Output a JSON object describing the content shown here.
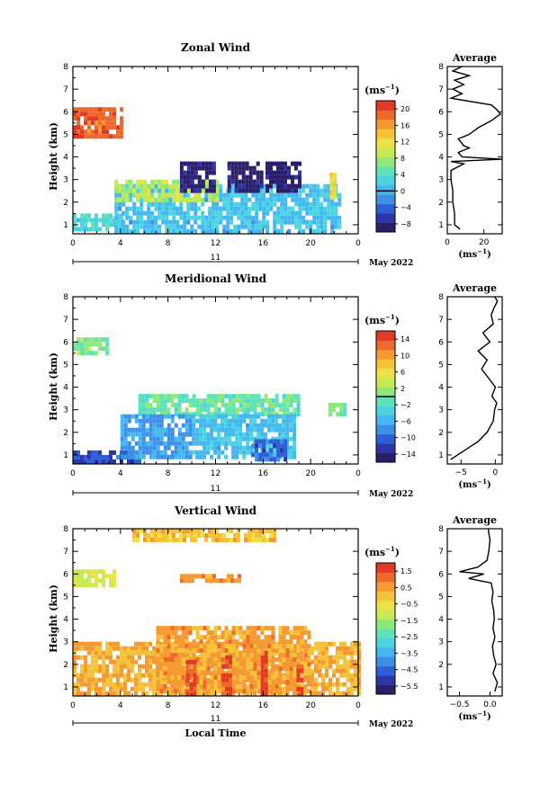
{
  "chart_data": [
    {
      "type": "heatmap",
      "title": "Zonal Wind",
      "ylabel": "Height (km)",
      "ylim": [
        0.6,
        8
      ],
      "xlim": [
        0,
        24
      ],
      "x_ticks": [
        "0",
        "4",
        "8",
        "12",
        "16",
        "20",
        "0"
      ],
      "y_ticks": [
        "1",
        "2",
        "3",
        "4",
        "5",
        "6",
        "7",
        "8"
      ],
      "date_day": "11",
      "date_label": "May 2022",
      "unit": "(ms",
      "unit_exp": "−1",
      "unit_close": ")",
      "colorbar": {
        "ticks": [
          "20",
          "16",
          "12",
          "8",
          "4",
          "0",
          "−4",
          "−8"
        ],
        "values": [
          20,
          16,
          12,
          8,
          4,
          0,
          -4,
          -8
        ],
        "range": [
          -10,
          22
        ],
        "zero_line": 0
      },
      "regions": [
        {
          "x": [
            0,
            4
          ],
          "y": [
            4.9,
            6.2
          ],
          "value": 19
        },
        {
          "x": [
            0,
            4
          ],
          "y": [
            0.8,
            1.5
          ],
          "value": 3
        },
        {
          "x": [
            3.5,
            22.5
          ],
          "y": [
            0.8,
            2.8
          ],
          "value": 1
        },
        {
          "x": [
            3.5,
            12
          ],
          "y": [
            2.2,
            3.0
          ],
          "value": 9
        },
        {
          "x": [
            9,
            12
          ],
          "y": [
            2.6,
            3.8
          ],
          "value": -9
        },
        {
          "x": [
            13,
            16
          ],
          "y": [
            2.6,
            3.8
          ],
          "value": -9
        },
        {
          "x": [
            16.2,
            19
          ],
          "y": [
            2.6,
            3.8
          ],
          "value": -9
        },
        {
          "x": [
            21.6,
            22.2
          ],
          "y": [
            2.2,
            3.3
          ],
          "value": 12
        }
      ],
      "profile": {
        "title": "Average",
        "x_ticks": [
          "0",
          "20"
        ],
        "xlim": [
          0,
          30
        ],
        "xlabel": "(ms",
        "xlabel_exp": "−1",
        "xlabel_close": ")",
        "heights": [
          0.8,
          1.0,
          1.5,
          2.0,
          2.5,
          3.0,
          3.4,
          3.7,
          3.8,
          3.9,
          4.0,
          4.2,
          4.4,
          4.5,
          4.8,
          5.0,
          5.3,
          5.6,
          5.9,
          6.1,
          6.3,
          6.6,
          6.8,
          7.0,
          7.2,
          7.4,
          7.6,
          7.8,
          8.0
        ],
        "values": [
          7,
          4,
          4,
          3,
          3,
          2,
          2,
          9,
          2,
          30,
          8,
          6,
          12,
          9,
          6,
          12,
          17,
          24,
          29,
          27,
          24,
          2,
          8,
          3,
          9,
          4,
          12,
          3,
          8
        ]
      }
    },
    {
      "type": "heatmap",
      "title": "Meridional Wind",
      "ylabel": "Height (km)",
      "ylim": [
        0.6,
        8
      ],
      "xlim": [
        0,
        24
      ],
      "x_ticks": [
        "0",
        "4",
        "8",
        "12",
        "16",
        "20",
        "0"
      ],
      "y_ticks": [
        "1",
        "2",
        "3",
        "4",
        "5",
        "6",
        "7",
        "8"
      ],
      "date_day": "11",
      "date_label": "May 2022",
      "unit": "(ms",
      "unit_exp": "−1",
      "unit_close": ")",
      "colorbar": {
        "ticks": [
          "14",
          "10",
          "6",
          "2",
          "−2",
          "−6",
          "−10",
          "−14"
        ],
        "values": [
          14,
          10,
          6,
          2,
          -2,
          -6,
          -10,
          -14
        ],
        "range": [
          -16,
          16
        ],
        "zero_line": 0
      },
      "regions": [
        {
          "x": [
            0,
            3
          ],
          "y": [
            5.6,
            6.2
          ],
          "value": 1
        },
        {
          "x": [
            0,
            5.5
          ],
          "y": [
            0.8,
            1.2
          ],
          "value": -11
        },
        {
          "x": [
            5.5,
            19
          ],
          "y": [
            2.8,
            3.7
          ],
          "value": -1
        },
        {
          "x": [
            4,
            10
          ],
          "y": [
            1.0,
            2.8
          ],
          "value": -7
        },
        {
          "x": [
            10,
            18.5
          ],
          "y": [
            1.0,
            2.8
          ],
          "value": -5
        },
        {
          "x": [
            15,
            18
          ],
          "y": [
            0.9,
            1.7
          ],
          "value": -10
        },
        {
          "x": [
            21.5,
            23
          ],
          "y": [
            2.8,
            3.3
          ],
          "value": 1
        }
      ],
      "profile": {
        "title": "Average",
        "x_ticks": [
          "−5",
          "0"
        ],
        "xlim": [
          -7,
          1
        ],
        "xlabel": "(ms",
        "xlabel_exp": "−1",
        "xlabel_close": ")",
        "heights": [
          0.8,
          1.0,
          1.3,
          1.6,
          2.0,
          2.5,
          3.0,
          3.3,
          3.6,
          4.0,
          4.4,
          4.8,
          5.2,
          5.6,
          6.0,
          6.4,
          6.8,
          7.2,
          7.5,
          7.8,
          8.0
        ],
        "values": [
          -6.5,
          -5.5,
          -4.0,
          -2.5,
          -1.2,
          -0.3,
          -0.1,
          0.2,
          -0.5,
          0.0,
          -1.0,
          -2.0,
          -1.2,
          -2.5,
          -0.8,
          -1.8,
          -0.3,
          -0.6,
          -0.2,
          0.3,
          -0.1
        ]
      }
    },
    {
      "type": "heatmap",
      "title": "Vertical Wind",
      "ylabel": "Height (km)",
      "xlabel": "Local Time",
      "ylim": [
        0.6,
        8
      ],
      "xlim": [
        0,
        24
      ],
      "x_ticks": [
        "0",
        "4",
        "8",
        "12",
        "16",
        "20",
        "0"
      ],
      "y_ticks": [
        "1",
        "2",
        "3",
        "4",
        "5",
        "6",
        "7",
        "8"
      ],
      "date_day": "11",
      "date_label": "May 2022",
      "unit": "(ms",
      "unit_exp": "−1",
      "unit_close": ")",
      "colorbar": {
        "ticks": [
          "1.5",
          "0.5",
          "−0.5",
          "−1.5",
          "−2.5",
          "−3.5",
          "−4.5",
          "−5.5"
        ],
        "values": [
          1.5,
          0.5,
          -0.5,
          -1.5,
          -2.5,
          -3.5,
          -4.5,
          -5.5
        ],
        "range": [
          -6,
          2
        ],
        "zero_line": null
      },
      "regions": [
        {
          "x": [
            0,
            3.5
          ],
          "y": [
            5.6,
            6.2
          ],
          "value": -0.9
        },
        {
          "x": [
            0,
            24
          ],
          "y": [
            0.8,
            3.0
          ],
          "value": 0.3
        },
        {
          "x": [
            7,
            20
          ],
          "y": [
            0.8,
            3.7
          ],
          "value": 0.5
        },
        {
          "x": [
            9.5,
            10.2
          ],
          "y": [
            0.8,
            2.2
          ],
          "value": 1.5
        },
        {
          "x": [
            12.5,
            13.2
          ],
          "y": [
            0.8,
            2.4
          ],
          "value": 1.6
        },
        {
          "x": [
            15.8,
            16.4
          ],
          "y": [
            0.8,
            2.6
          ],
          "value": 1.8
        },
        {
          "x": [
            18.8,
            19.4
          ],
          "y": [
            0.8,
            2.0
          ],
          "value": 1.7
        },
        {
          "x": [
            9,
            14
          ],
          "y": [
            5.8,
            6.0
          ],
          "value": 0.6
        },
        {
          "x": [
            5,
            17
          ],
          "y": [
            7.6,
            8.0
          ],
          "value": 0.0
        }
      ],
      "profile": {
        "title": "Average",
        "x_ticks": [
          "−0.5",
          "0.0"
        ],
        "xlim": [
          -0.7,
          0.2
        ],
        "xlabel": "(ms",
        "xlabel_exp": "−1",
        "xlabel_close": ")",
        "heights": [
          0.8,
          1.2,
          1.6,
          2.0,
          2.4,
          2.8,
          3.2,
          3.6,
          4.0,
          4.4,
          4.8,
          5.2,
          5.6,
          5.8,
          6.0,
          6.1,
          6.3,
          6.6,
          7.0,
          7.5,
          8.0
        ],
        "values": [
          0.08,
          0.12,
          0.05,
          0.1,
          0.06,
          0.04,
          0.08,
          0.05,
          0.07,
          0.06,
          0.03,
          0.05,
          0.02,
          -0.35,
          -0.1,
          -0.5,
          -0.2,
          -0.05,
          -0.02,
          0.0,
          -0.03
        ]
      }
    }
  ]
}
